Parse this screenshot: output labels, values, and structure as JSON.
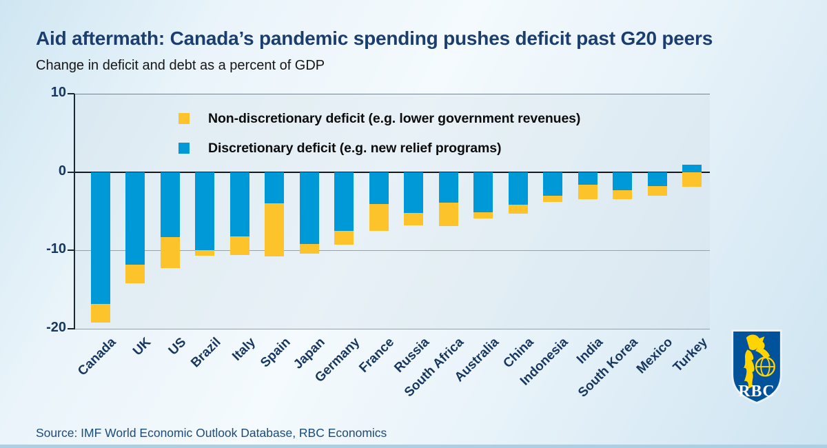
{
  "page": {
    "title": "Aid aftermath: Canada’s pandemic spending pushes deficit past G20 peers",
    "subtitle": "Change in deficit and debt as a percent of GDP",
    "source": "Source: IMF World Economic Outlook Database, RBC Economics"
  },
  "logo": {
    "text": "RBC"
  },
  "colors": {
    "non_discretionary_yellow": "#FDC32B",
    "discretionary_blue": "#0099D8",
    "title_navy": "#1B3E6E",
    "axis_navy": "#17375E",
    "shield_blue": "#00529B",
    "lion_yellow": "#FFD400"
  },
  "chart_data": {
    "type": "bar",
    "stacked": true,
    "title": "Aid aftermath: Canada’s pandemic spending pushes deficit past G20 peers",
    "subtitle": "Change in deficit and debt as a percent of GDP",
    "xlabel": "",
    "ylabel": "",
    "units": "percent of GDP",
    "ylim": [
      -20,
      10
    ],
    "yticks": [
      10,
      0,
      -10,
      -20
    ],
    "grid": true,
    "legend_position": "top-left-inside",
    "categories": [
      "Canada",
      "UK",
      "US",
      "Brazil",
      "Italy",
      "Spain",
      "Japan",
      "Germany",
      "France",
      "Russia",
      "South Africa",
      "Australia",
      "China",
      "Indonesia",
      "India",
      "South Korea",
      "Mexico",
      "Turkey"
    ],
    "series": [
      {
        "name": "Non-discretionary deficit (e.g. lower government revenues)",
        "color": "#FDC32B",
        "values": [
          -2.4,
          -2.4,
          -4.0,
          -0.7,
          -2.4,
          -6.8,
          -1.2,
          -1.8,
          -3.4,
          -1.6,
          -3.0,
          -0.8,
          -1.1,
          -0.8,
          -1.9,
          -1.2,
          -1.2,
          -1.9
        ]
      },
      {
        "name": "Discretionary deficit (e.g. new relief programs)",
        "color": "#0099D8",
        "values": [
          -16.8,
          -11.8,
          -8.3,
          -10.0,
          -8.2,
          -4.0,
          -9.2,
          -7.5,
          -4.1,
          -5.2,
          -3.9,
          -5.1,
          -4.2,
          -3.0,
          -1.6,
          -2.3,
          -1.8,
          0.9
        ]
      }
    ]
  }
}
